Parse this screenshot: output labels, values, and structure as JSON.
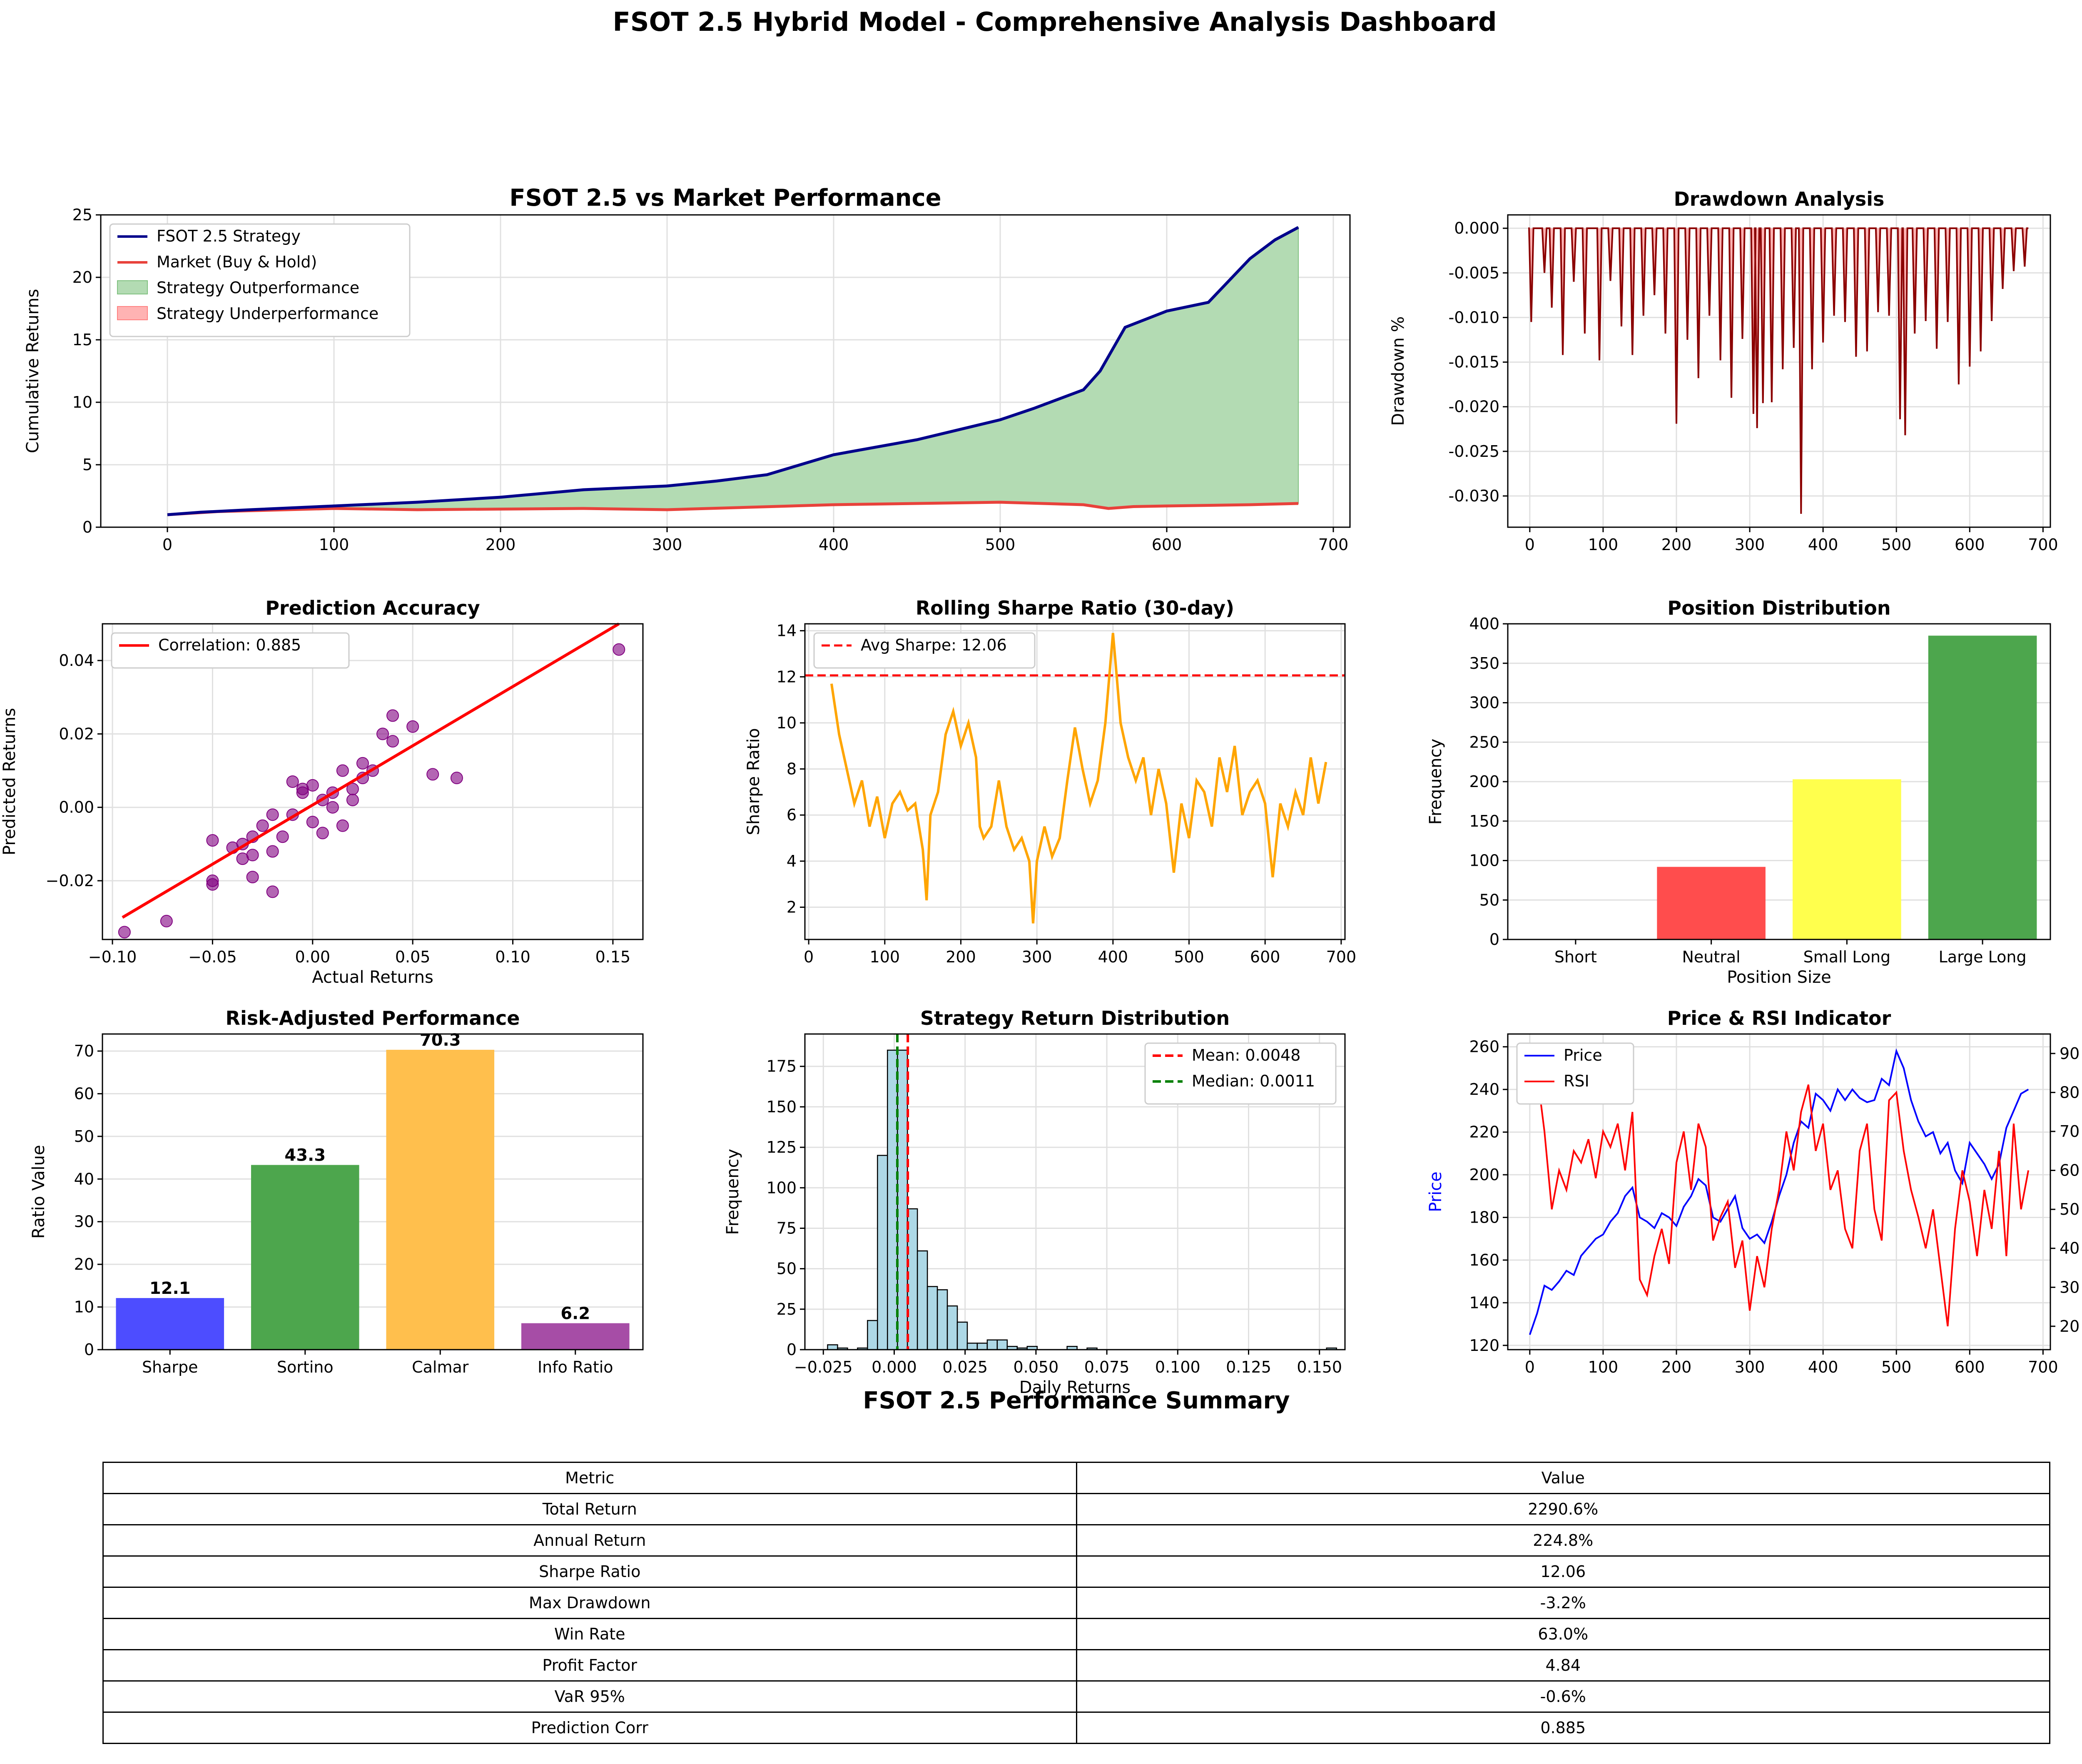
{
  "page": {
    "suptitle": "FSOT 2.5 Hybrid Model - Comprehensive Analysis Dashboard",
    "table_title": "FSOT 2.5 Performance Summary"
  },
  "colors": {
    "strategy": "#00008b",
    "market": "#e8423b",
    "outperf": "#b3dbb3",
    "underperf": "#ffb3b3",
    "drawdown_line": "#8b0000",
    "drawdown_fill": "#ffb3b3",
    "scatter": "#800080",
    "fit": "#ff0000",
    "sharpe": "#ffa500",
    "sharpe_avg": "#ff0000",
    "hist": "#add8e6",
    "mean": "#ff0000",
    "median": "#008000",
    "price": "#0000ff",
    "rsi": "#ff0000"
  },
  "chart_data": [
    {
      "id": "performance",
      "type": "line",
      "title": "FSOT 2.5 vs Market Performance",
      "xlabel": "",
      "ylabel": "Cumulative Returns",
      "xlim": [
        -40,
        710
      ],
      "ylim": [
        0,
        25
      ],
      "xticks": [
        0,
        100,
        200,
        300,
        400,
        500,
        600,
        700
      ],
      "yticks": [
        0,
        5,
        10,
        15,
        20,
        25
      ],
      "grid": true,
      "legend": "top-left",
      "series": [
        {
          "name": "FSOT 2.5 Strategy",
          "x": [
            0,
            20,
            50,
            100,
            150,
            200,
            250,
            300,
            330,
            360,
            380,
            400,
            450,
            500,
            520,
            550,
            560,
            575,
            600,
            625,
            650,
            665,
            679
          ],
          "values": [
            1.0,
            1.2,
            1.4,
            1.7,
            2.0,
            2.4,
            3.0,
            3.3,
            3.7,
            4.2,
            5.0,
            5.8,
            7.0,
            8.6,
            9.5,
            11.0,
            12.5,
            16.0,
            17.3,
            18.0,
            21.5,
            23.0,
            24.0
          ]
        },
        {
          "name": "Market (Buy & Hold)",
          "x": [
            0,
            30,
            100,
            150,
            200,
            250,
            300,
            350,
            400,
            450,
            500,
            550,
            565,
            580,
            600,
            650,
            679
          ],
          "values": [
            1.0,
            1.25,
            1.5,
            1.4,
            1.45,
            1.5,
            1.4,
            1.6,
            1.8,
            1.9,
            2.0,
            1.8,
            1.5,
            1.65,
            1.7,
            1.8,
            1.9
          ]
        }
      ],
      "fills": [
        {
          "name": "Strategy Outperformance"
        },
        {
          "name": "Strategy Underperformance"
        }
      ]
    },
    {
      "id": "drawdown",
      "type": "area",
      "title": "Drawdown Analysis",
      "ylabel": "Drawdown %",
      "xlim": [
        -30,
        710
      ],
      "ylim": [
        -0.0335,
        0.0015
      ],
      "xticks": [
        0,
        100,
        200,
        300,
        400,
        500,
        600,
        700
      ],
      "yticks": [
        0.0,
        -0.005,
        -0.01,
        -0.015,
        -0.02,
        -0.025,
        -0.03
      ],
      "ytick_labels": [
        "0.000",
        "-0.005",
        "-0.010",
        "-0.015",
        "-0.020",
        "-0.025",
        "-0.030"
      ],
      "grid": true,
      "spikes": {
        "x": [
          2,
          20,
          30,
          45,
          60,
          75,
          95,
          110,
          125,
          140,
          155,
          170,
          185,
          200,
          215,
          230,
          245,
          260,
          275,
          290,
          305,
          310,
          318,
          330,
          345,
          360,
          370,
          385,
          400,
          415,
          430,
          445,
          460,
          475,
          490,
          505,
          512,
          525,
          540,
          555,
          570,
          585,
          600,
          615,
          630,
          645,
          660,
          675
        ],
        "values": [
          -0.0105,
          -0.005,
          -0.0089,
          -0.0142,
          -0.006,
          -0.0118,
          -0.0148,
          -0.0059,
          -0.011,
          -0.0142,
          -0.0098,
          -0.0075,
          -0.0118,
          -0.0219,
          -0.0125,
          -0.0168,
          -0.0098,
          -0.0148,
          -0.019,
          -0.0124,
          -0.0208,
          -0.0224,
          -0.0196,
          -0.0195,
          -0.0158,
          -0.0134,
          -0.032,
          -0.0158,
          -0.0128,
          -0.0098,
          -0.0105,
          -0.0144,
          -0.0138,
          -0.0094,
          -0.0098,
          -0.0214,
          -0.0232,
          -0.0118,
          -0.0104,
          -0.0135,
          -0.0105,
          -0.0175,
          -0.0155,
          -0.0138,
          -0.0104,
          -0.0068,
          -0.0048,
          -0.0043
        ]
      }
    },
    {
      "id": "prediction",
      "type": "scatter",
      "title": "Prediction Accuracy",
      "xlabel": "Actual Returns",
      "ylabel": "Predicted Returns",
      "xlim": [
        -0.105,
        0.165
      ],
      "ylim": [
        -0.036,
        0.05
      ],
      "xticks": [
        -0.1,
        -0.05,
        0.0,
        0.05,
        0.1,
        0.15
      ],
      "xtick_labels": [
        "−0.10",
        "−0.05",
        "0.00",
        "0.05",
        "0.10",
        "0.15"
      ],
      "yticks": [
        -0.02,
        0.0,
        0.02,
        0.04
      ],
      "ytick_labels": [
        "−0.02",
        "0.00",
        "0.02",
        "0.04"
      ],
      "grid": true,
      "legend": "top-left",
      "fit_line": {
        "name": "Correlation: 0.885",
        "x": [
          -0.095,
          0.153
        ],
        "y": [
          -0.03,
          0.05
        ]
      },
      "points": {
        "x": [
          -0.094,
          -0.073,
          -0.05,
          -0.05,
          -0.05,
          -0.04,
          -0.035,
          -0.03,
          -0.03,
          -0.025,
          -0.02,
          -0.02,
          -0.015,
          -0.01,
          -0.005,
          0.0,
          0.005,
          0.005,
          0.01,
          0.015,
          0.02,
          0.025,
          0.03,
          0.035,
          0.04,
          0.04,
          0.05,
          0.06,
          0.072,
          0.153,
          -0.03,
          -0.01,
          0.02,
          -0.02,
          0.0,
          0.01,
          -0.005,
          0.015,
          0.025,
          -0.035
        ],
        "values": [
          -0.034,
          -0.031,
          -0.021,
          -0.02,
          -0.009,
          -0.011,
          -0.014,
          -0.008,
          -0.019,
          -0.005,
          -0.023,
          -0.002,
          -0.008,
          0.007,
          0.005,
          0.006,
          0.002,
          -0.007,
          0.004,
          0.01,
          0.002,
          0.008,
          0.01,
          0.02,
          0.018,
          0.025,
          0.022,
          0.009,
          0.008,
          0.043,
          -0.013,
          -0.002,
          0.005,
          -0.012,
          -0.004,
          0.0,
          0.004,
          -0.005,
          0.012,
          -0.01
        ]
      }
    },
    {
      "id": "rolling_sharpe",
      "type": "line",
      "title": "Rolling Sharpe Ratio (30-day)",
      "ylabel": "Sharpe Ratio",
      "xlim": [
        -5,
        705
      ],
      "ylim": [
        0.6,
        14.3
      ],
      "xticks": [
        0,
        100,
        200,
        300,
        400,
        500,
        600,
        700
      ],
      "yticks": [
        2,
        4,
        6,
        8,
        10,
        12,
        14
      ],
      "grid": true,
      "legend": "top-left",
      "hline": {
        "name": "Avg Sharpe: 12.06",
        "y": 12.06
      },
      "series": [
        {
          "name": "Sharpe",
          "x": [
            30,
            40,
            50,
            60,
            70,
            80,
            90,
            100,
            110,
            120,
            130,
            140,
            150,
            155,
            160,
            170,
            180,
            190,
            200,
            210,
            220,
            225,
            230,
            240,
            250,
            260,
            270,
            280,
            290,
            295,
            300,
            310,
            320,
            330,
            340,
            350,
            360,
            370,
            380,
            390,
            400,
            405,
            410,
            420,
            430,
            440,
            450,
            460,
            470,
            480,
            490,
            500,
            510,
            520,
            530,
            540,
            550,
            560,
            570,
            580,
            590,
            600,
            610,
            620,
            630,
            640,
            650,
            660,
            670,
            680
          ],
          "values": [
            11.7,
            9.5,
            8.0,
            6.5,
            7.5,
            5.5,
            6.8,
            5.0,
            6.5,
            7.0,
            6.2,
            6.5,
            4.5,
            2.3,
            6.0,
            7.0,
            9.5,
            10.5,
            9.0,
            10.0,
            8.5,
            5.5,
            5.0,
            5.5,
            7.5,
            5.5,
            4.5,
            5.0,
            4.0,
            1.3,
            4.0,
            5.5,
            4.2,
            5.0,
            7.5,
            9.8,
            8.0,
            6.5,
            7.5,
            10.0,
            13.9,
            12.0,
            10.0,
            8.5,
            7.5,
            8.5,
            6.0,
            8.0,
            6.5,
            3.5,
            6.5,
            5.0,
            7.5,
            7.0,
            5.5,
            8.5,
            7.0,
            9.0,
            6.0,
            7.0,
            7.5,
            6.5,
            3.3,
            6.5,
            5.5,
            7.0,
            6.0,
            8.5,
            6.5,
            8.3
          ]
        }
      ]
    },
    {
      "id": "positions",
      "type": "bar",
      "title": "Position Distribution",
      "xlabel": "Position Size",
      "ylabel": "Frequency",
      "ylim": [
        0,
        400
      ],
      "yticks": [
        0,
        50,
        100,
        150,
        200,
        250,
        300,
        350,
        400
      ],
      "grid": true,
      "categories": [
        "Short",
        "Neutral",
        "Small Long",
        "Large Long"
      ],
      "values": [
        0,
        92,
        203,
        385
      ],
      "bar_colors": [
        "#ff4d4d",
        "#ff4d4d",
        "#ffff4d",
        "#4da64d"
      ]
    },
    {
      "id": "risk_adjusted",
      "type": "bar",
      "title": "Risk-Adjusted Performance",
      "ylabel": "Ratio Value",
      "ylim": [
        0,
        74
      ],
      "yticks": [
        0,
        10,
        20,
        30,
        40,
        50,
        60,
        70
      ],
      "grid": true,
      "categories": [
        "Sharpe",
        "Sortino",
        "Calmar",
        "Info Ratio"
      ],
      "values": [
        12.1,
        43.3,
        70.3,
        6.2
      ],
      "data_labels": [
        "12.1",
        "43.3",
        "70.3",
        "6.2"
      ],
      "bar_colors": [
        "#4d4dff",
        "#4da64d",
        "#ffbf4d",
        "#a64da6"
      ]
    },
    {
      "id": "return_dist",
      "type": "bar",
      "title": "Strategy Return Distribution",
      "xlabel": "Daily Returns",
      "ylabel": "Frequency",
      "xlim": [
        -0.0315,
        0.159
      ],
      "ylim": [
        0,
        195
      ],
      "xticks": [
        -0.025,
        0.0,
        0.025,
        0.05,
        0.075,
        0.1,
        0.125,
        0.15
      ],
      "xtick_labels": [
        "−0.025",
        "0.000",
        "0.025",
        "0.050",
        "0.075",
        "0.100",
        "0.125",
        "0.150"
      ],
      "yticks": [
        0,
        25,
        50,
        75,
        100,
        125,
        150,
        175
      ],
      "grid": true,
      "legend": "top-right",
      "bin_start": -0.0235,
      "bin_width": 0.00352,
      "values": [
        3,
        1,
        0,
        1,
        18,
        120,
        185,
        185,
        87,
        61,
        39,
        37,
        27,
        17,
        4,
        4,
        6,
        6,
        2,
        1,
        2,
        0,
        0,
        0,
        2,
        0,
        1,
        0,
        0,
        0,
        0,
        0,
        0,
        0,
        0,
        0,
        0,
        0,
        0,
        0,
        0,
        0,
        0,
        0,
        0,
        0,
        0,
        0,
        0,
        0,
        1
      ],
      "mean": {
        "name": "Mean: 0.0048",
        "x": 0.0048
      },
      "median": {
        "name": "Median: 0.0011",
        "x": 0.0011
      }
    },
    {
      "id": "price_rsi",
      "type": "line",
      "title": "Price & RSI Indicator",
      "ylabel": "Price",
      "ylabel_right": "RSI",
      "xlim": [
        -30,
        710
      ],
      "ylim": [
        118,
        266
      ],
      "ylim_right": [
        14,
        95
      ],
      "xticks": [
        0,
        100,
        200,
        300,
        400,
        500,
        600,
        700
      ],
      "yticks": [
        120,
        140,
        160,
        180,
        200,
        220,
        240,
        260
      ],
      "yticks_right": [
        20,
        30,
        40,
        50,
        60,
        70,
        80,
        90
      ],
      "grid": true,
      "legend": "top-left",
      "series": [
        {
          "name": "Price",
          "x": [
            0,
            10,
            20,
            30,
            40,
            50,
            60,
            70,
            80,
            90,
            100,
            110,
            120,
            130,
            140,
            150,
            160,
            170,
            180,
            190,
            200,
            210,
            220,
            230,
            240,
            250,
            260,
            270,
            280,
            290,
            300,
            310,
            320,
            330,
            340,
            350,
            360,
            370,
            380,
            390,
            400,
            410,
            420,
            430,
            440,
            450,
            460,
            470,
            480,
            490,
            500,
            510,
            520,
            530,
            540,
            550,
            560,
            570,
            580,
            590,
            600,
            610,
            620,
            630,
            640,
            650,
            660,
            670,
            680
          ],
          "values": [
            125,
            135,
            148,
            146,
            150,
            155,
            153,
            162,
            166,
            170,
            172,
            178,
            182,
            190,
            194,
            180,
            178,
            175,
            182,
            180,
            176,
            185,
            190,
            198,
            195,
            180,
            178,
            184,
            190,
            175,
            170,
            172,
            168,
            178,
            190,
            200,
            215,
            225,
            222,
            238,
            235,
            230,
            240,
            235,
            240,
            236,
            234,
            235,
            245,
            242,
            258,
            250,
            235,
            225,
            218,
            220,
            210,
            215,
            202,
            196,
            215,
            210,
            205,
            198,
            205,
            222,
            230,
            238,
            240
          ]
        },
        {
          "name": "RSI",
          "x": [
            0,
            10,
            20,
            30,
            40,
            50,
            60,
            70,
            80,
            90,
            100,
            110,
            120,
            130,
            140,
            150,
            160,
            170,
            180,
            190,
            200,
            210,
            220,
            230,
            240,
            250,
            260,
            270,
            280,
            290,
            300,
            310,
            320,
            330,
            340,
            350,
            360,
            370,
            380,
            390,
            400,
            410,
            420,
            430,
            440,
            450,
            460,
            470,
            480,
            490,
            500,
            510,
            520,
            530,
            540,
            550,
            560,
            570,
            580,
            590,
            600,
            610,
            620,
            630,
            640,
            650,
            660,
            670,
            680
          ],
          "values": [
            92,
            85,
            70,
            50,
            60,
            55,
            65,
            62,
            68,
            58,
            70,
            66,
            72,
            60,
            75,
            32,
            28,
            38,
            45,
            36,
            62,
            70,
            55,
            72,
            66,
            42,
            48,
            52,
            35,
            42,
            24,
            38,
            30,
            45,
            55,
            70,
            60,
            75,
            82,
            65,
            72,
            55,
            60,
            45,
            40,
            65,
            72,
            50,
            42,
            78,
            80,
            65,
            55,
            48,
            40,
            50,
            35,
            20,
            45,
            60,
            52,
            38,
            55,
            45,
            65,
            38,
            72,
            50,
            60
          ]
        }
      ]
    }
  ],
  "table": {
    "header": [
      "Metric",
      "Value"
    ],
    "rows": [
      [
        "Total Return",
        "2290.6%"
      ],
      [
        "Annual Return",
        "224.8%"
      ],
      [
        "Sharpe Ratio",
        "12.06"
      ],
      [
        "Max Drawdown",
        "-3.2%"
      ],
      [
        "Win Rate",
        "63.0%"
      ],
      [
        "Profit Factor",
        "4.84"
      ],
      [
        "VaR 95%",
        "-0.6%"
      ],
      [
        "Prediction Corr",
        "0.885"
      ]
    ]
  }
}
